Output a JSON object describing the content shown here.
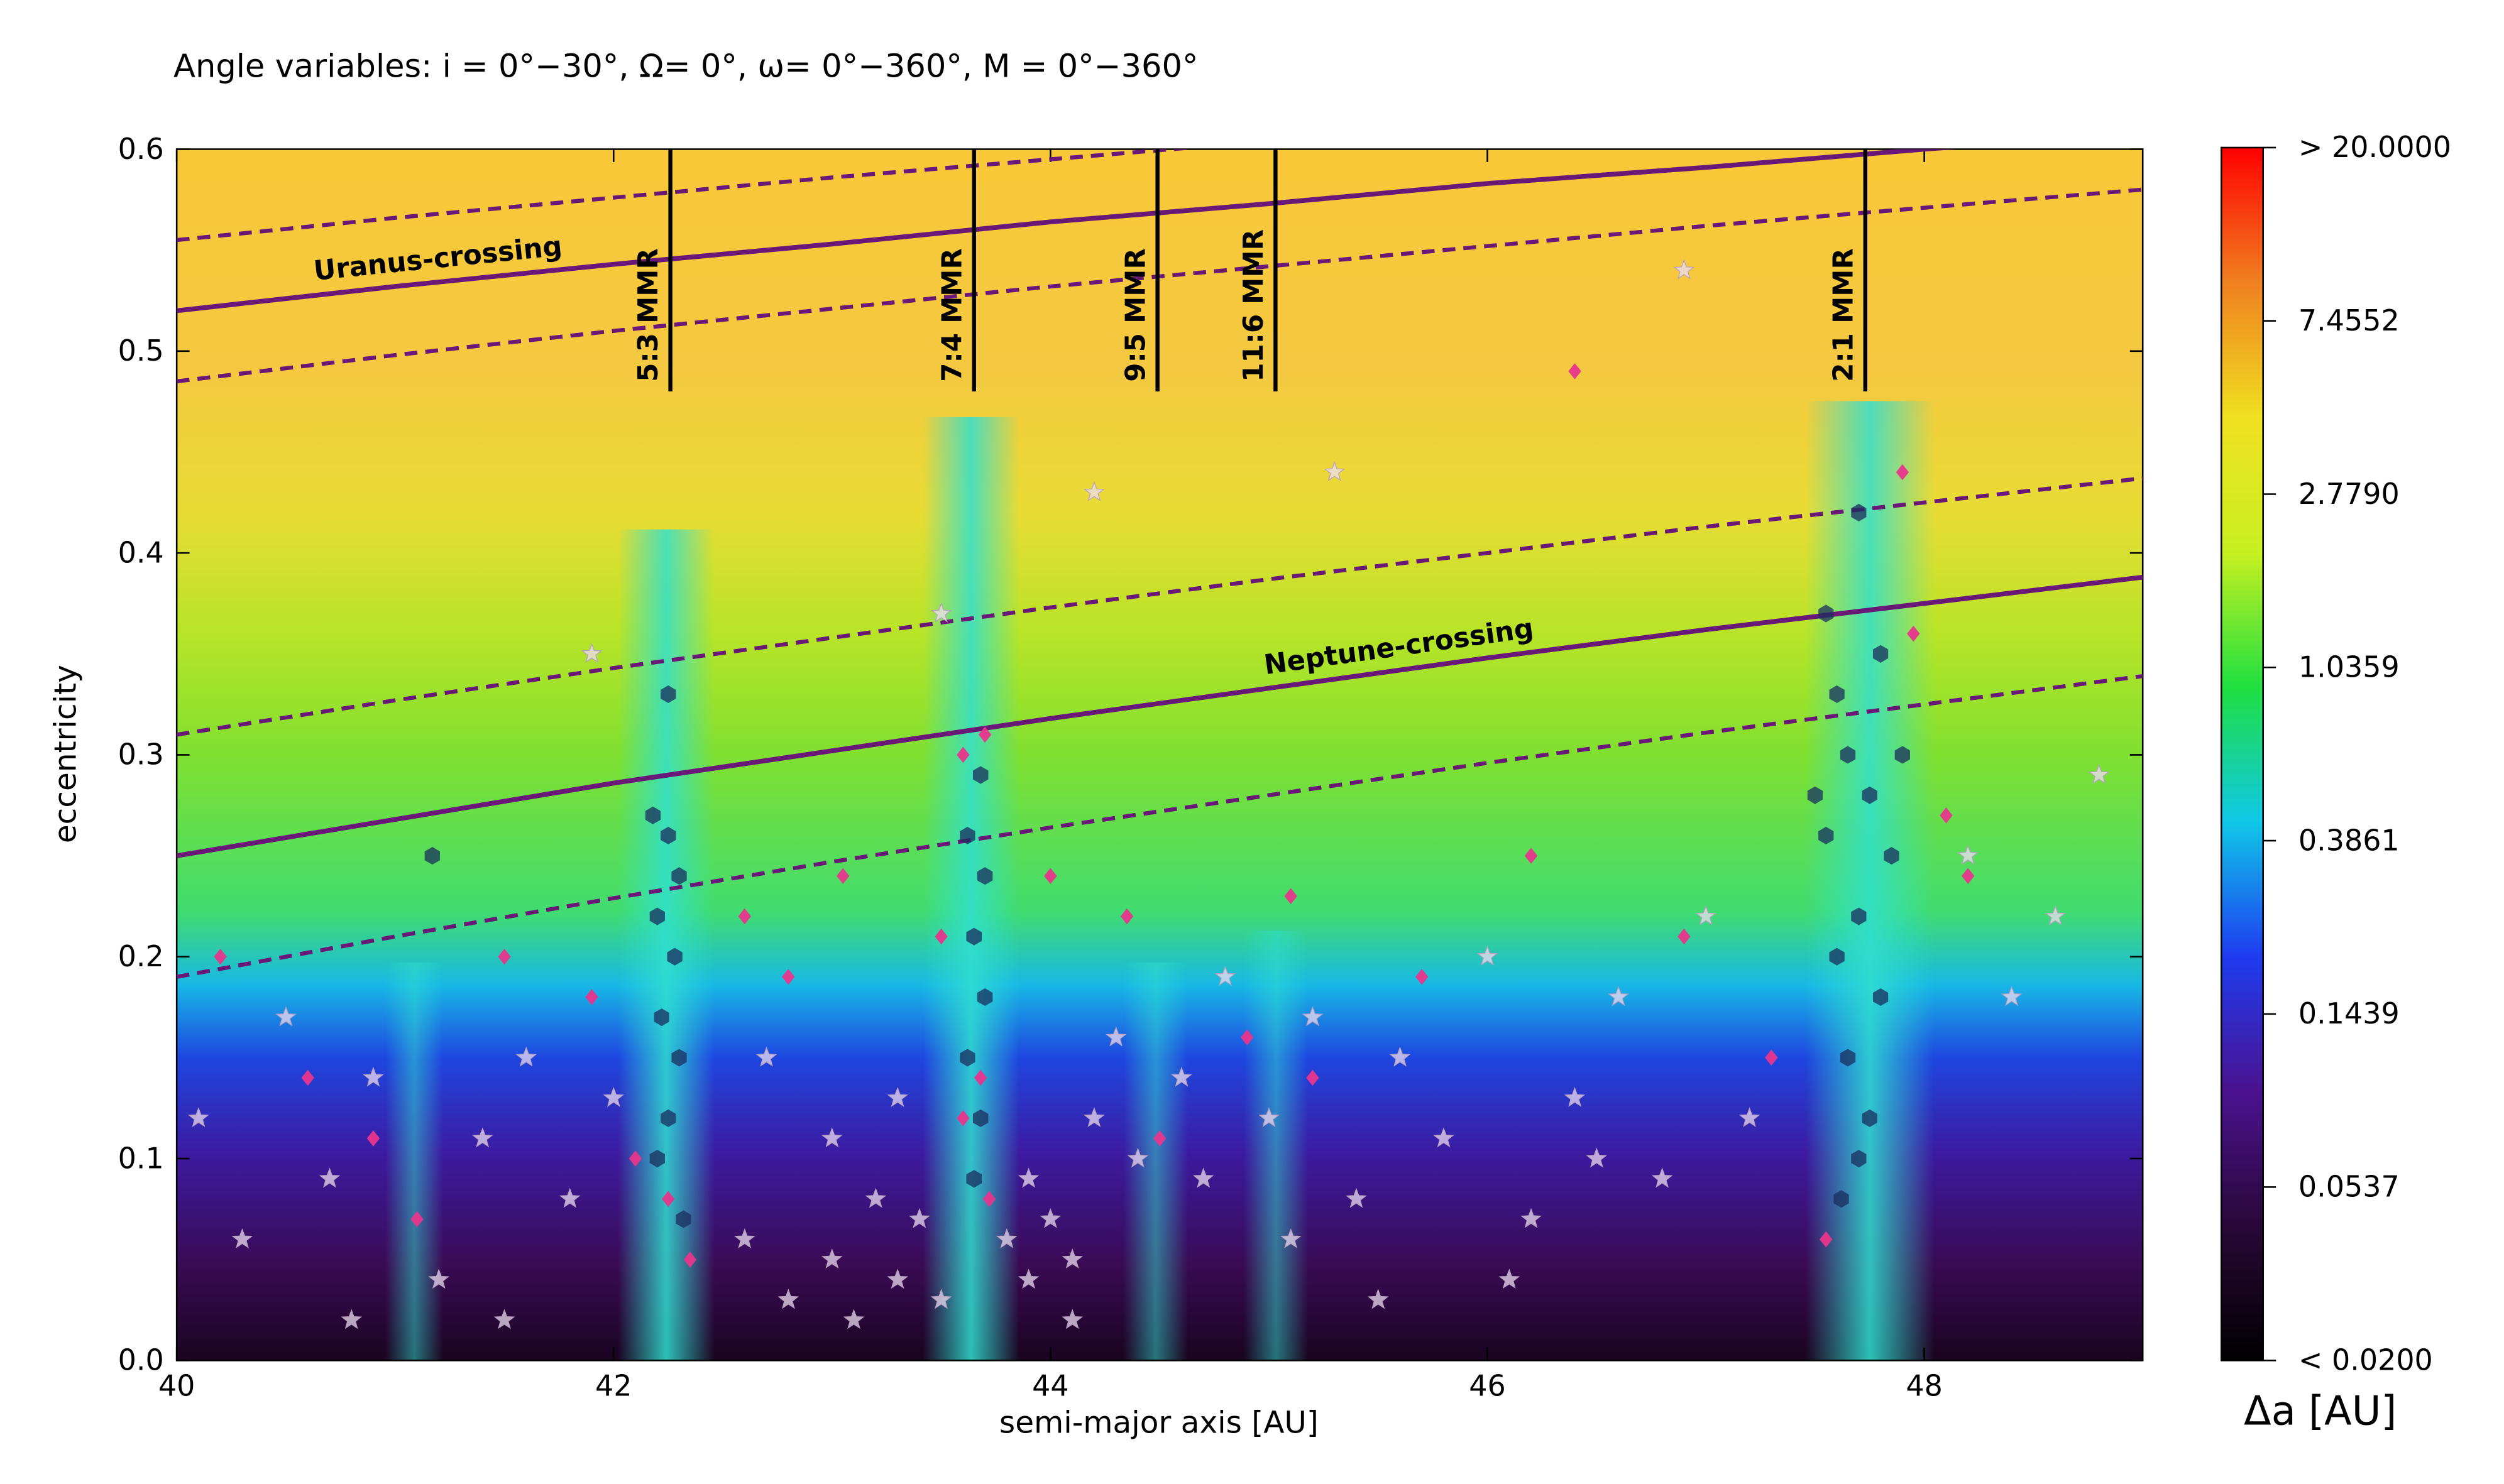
{
  "chart_data": {
    "type": "scatter",
    "title": "Angle variables: i = 0°−30°, Ω= 0°, ω= 0°−360°, M = 0°−360°",
    "x_label": "semi-major axis [AU]",
    "y_label": "eccentricity",
    "xlim": [
      40,
      49
    ],
    "ylim": [
      0,
      0.6
    ],
    "xticks": [
      40,
      42,
      44,
      46,
      48
    ],
    "yticks": [
      {
        "value": 0,
        "label": "0.0"
      },
      0.1,
      0.2,
      0.3,
      0.4,
      0.5,
      0.6
    ],
    "colorbar": {
      "label": "Δa [AU]",
      "log": true,
      "clim": [
        0.02,
        20
      ],
      "colors": [
        "#000000",
        "#2a0838",
        "#4a1290",
        "#1e3cf0",
        "#10c8e8",
        "#20e040",
        "#c8f020",
        "#f0e020",
        "#f08020",
        "#ff0000"
      ],
      "ticks": [
        {
          "value": 20,
          "label": "> 20.0000"
        },
        7.4552,
        {
          "value": 2.779,
          "label": "2.7790"
        },
        1.0359,
        0.3861,
        0.1439,
        0.0537,
        {
          "value": 0.02,
          "label": "<  0.0200"
        }
      ]
    },
    "resonances": [
      {
        "label": "5:3 MMR",
        "x": 42.26,
        "ylim": [
          0.48,
          0.6
        ]
      },
      {
        "label": "7:4 MMR",
        "x": 43.65,
        "ylim": [
          0.48,
          0.6
        ]
      },
      {
        "label": "9:5 MMR",
        "x": 44.49,
        "ylim": [
          0.48,
          0.6
        ]
      },
      {
        "label": "11:6 MMR",
        "x": 45.03,
        "ylim": [
          0.48,
          0.6
        ]
      },
      {
        "label": "2:1 MMR",
        "x": 47.73,
        "ylim": [
          0.48,
          0.6
        ]
      }
    ],
    "curves": [
      {
        "label": "Uranus-crossing",
        "color": "#6a1878",
        "style": "solid",
        "x": [
          40,
          41,
          42,
          43,
          44,
          45,
          46,
          47,
          48,
          49
        ],
        "values": [
          0.52,
          0.532,
          0.543,
          0.553,
          0.564,
          0.573,
          0.583,
          0.591,
          0.6,
          0.608
        ]
      },
      {
        "color": "#6a1878",
        "style": "dashed",
        "x": [
          40,
          41,
          42,
          43,
          44,
          45,
          46,
          47,
          48,
          49
        ],
        "values": [
          0.485,
          0.498,
          0.51,
          0.521,
          0.532,
          0.542,
          0.552,
          0.562,
          0.571,
          0.58
        ]
      },
      {
        "color": "#6a1878",
        "style": "dashed",
        "x": [
          40,
          41,
          42,
          43,
          44,
          45
        ],
        "values": [
          0.555,
          0.566,
          0.576,
          0.586,
          0.595,
          0.604
        ]
      },
      {
        "label": "Neptune-crossing",
        "color": "#6a1878",
        "style": "solid",
        "x": [
          40,
          41,
          42,
          43,
          44,
          45,
          46,
          47,
          48,
          49
        ],
        "values": [
          0.25,
          0.268,
          0.286,
          0.302,
          0.318,
          0.333,
          0.348,
          0.362,
          0.375,
          0.388
        ]
      },
      {
        "color": "#6a1878",
        "style": "dashed",
        "x": [
          40,
          41,
          42,
          43,
          44,
          45,
          46,
          47,
          48,
          49
        ],
        "values": [
          0.31,
          0.327,
          0.343,
          0.358,
          0.373,
          0.387,
          0.4,
          0.413,
          0.425,
          0.437
        ]
      },
      {
        "color": "#6a1878",
        "style": "dashed",
        "x": [
          40,
          41,
          42,
          43,
          44,
          45,
          46,
          47,
          48,
          49
        ],
        "values": [
          0.19,
          0.21,
          0.229,
          0.247,
          0.264,
          0.28,
          0.296,
          0.311,
          0.325,
          0.339
        ]
      }
    ],
    "series": [
      {
        "marker": "star",
        "color": "#eedcf2",
        "x": [
          40.1,
          40.3,
          40.5,
          40.7,
          40.9,
          41.2,
          41.4,
          41.6,
          41.8,
          42.0,
          42.6,
          42.8,
          43.0,
          43.1,
          43.2,
          43.3,
          43.4,
          43.5,
          43.8,
          43.9,
          44.0,
          44.1,
          44.2,
          44.3,
          44.4,
          44.6,
          44.8,
          45.0,
          45.2,
          45.4,
          45.6,
          45.8,
          46.0,
          46.2,
          46.4,
          46.6,
          46.8,
          47.0,
          47.2,
          48.2,
          48.4,
          48.6,
          48.8,
          42.7,
          43.0,
          43.3,
          43.9,
          44.1,
          44.7,
          45.1,
          45.5,
          46.1,
          46.5,
          41.5,
          40.8,
          41.9,
          43.5,
          44.2,
          45.3,
          46.9
        ],
        "values": [
          0.12,
          0.06,
          0.17,
          0.09,
          0.14,
          0.04,
          0.11,
          0.15,
          0.08,
          0.13,
          0.06,
          0.03,
          0.05,
          0.02,
          0.08,
          0.04,
          0.07,
          0.03,
          0.06,
          0.09,
          0.07,
          0.05,
          0.12,
          0.16,
          0.1,
          0.14,
          0.19,
          0.12,
          0.17,
          0.08,
          0.15,
          0.11,
          0.2,
          0.07,
          0.13,
          0.18,
          0.09,
          0.22,
          0.12,
          0.25,
          0.18,
          0.22,
          0.29,
          0.15,
          0.11,
          0.13,
          0.04,
          0.02,
          0.09,
          0.06,
          0.03,
          0.04,
          0.1,
          0.02,
          0.02,
          0.35,
          0.37,
          0.43,
          0.44,
          0.54
        ]
      },
      {
        "marker": "hexagon",
        "color": "#1b2d5e",
        "x": [
          42.25,
          42.3,
          42.2,
          42.28,
          42.22,
          42.3,
          42.25,
          42.2,
          42.32,
          42.18,
          43.68,
          43.62,
          43.7,
          43.65,
          43.7,
          43.62,
          43.68,
          43.65,
          41.17,
          47.55,
          47.7,
          47.6,
          47.8,
          47.65,
          47.75,
          47.55,
          47.85,
          47.7,
          47.6,
          47.8,
          47.65,
          47.75,
          47.7,
          47.62,
          47.9,
          47.5,
          42.25
        ],
        "values": [
          0.26,
          0.24,
          0.22,
          0.2,
          0.17,
          0.15,
          0.12,
          0.1,
          0.07,
          0.27,
          0.29,
          0.26,
          0.24,
          0.21,
          0.18,
          0.15,
          0.12,
          0.09,
          0.25,
          0.37,
          0.42,
          0.33,
          0.35,
          0.3,
          0.28,
          0.26,
          0.25,
          0.22,
          0.2,
          0.18,
          0.15,
          0.12,
          0.1,
          0.08,
          0.3,
          0.28,
          0.33
        ]
      },
      {
        "marker": "diamond",
        "color": "#e8358c",
        "x": [
          40.2,
          40.6,
          40.9,
          41.1,
          41.5,
          41.9,
          42.1,
          42.35,
          42.6,
          42.8,
          43.05,
          43.5,
          43.6,
          43.7,
          43.6,
          43.72,
          44.0,
          44.35,
          44.5,
          44.9,
          45.1,
          45.2,
          45.7,
          46.2,
          46.4,
          46.9,
          47.3,
          47.55,
          47.9,
          48.1,
          48.2,
          47.95,
          43.68,
          42.25
        ],
        "values": [
          0.2,
          0.14,
          0.11,
          0.07,
          0.2,
          0.18,
          0.1,
          0.05,
          0.22,
          0.19,
          0.24,
          0.21,
          0.3,
          0.31,
          0.12,
          0.08,
          0.24,
          0.22,
          0.11,
          0.16,
          0.23,
          0.14,
          0.19,
          0.25,
          0.49,
          0.21,
          0.15,
          0.06,
          0.44,
          0.27,
          0.24,
          0.36,
          0.14,
          0.08
        ]
      }
    ]
  }
}
